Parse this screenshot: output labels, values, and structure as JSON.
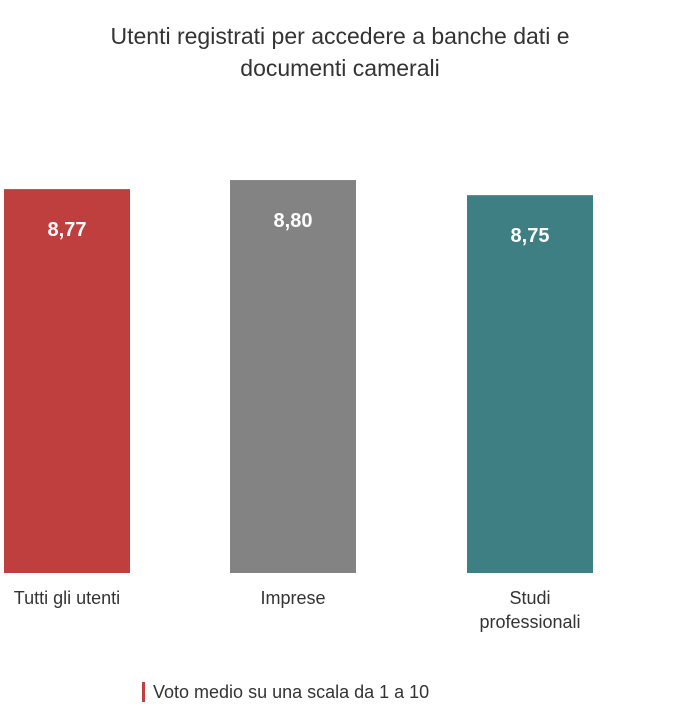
{
  "chart_data": {
    "type": "bar",
    "title": "Utenti registrati per accedere a banche dati e documenti camerali",
    "categories": [
      "Tutti gli utenti",
      "Imprese",
      "Studi professionali"
    ],
    "values": [
      8.77,
      8.8,
      8.75
    ],
    "value_labels": [
      "8,77",
      "8,80",
      "8,75"
    ],
    "colors": [
      "#bf3f3f",
      "#828382",
      "#3e7f84"
    ],
    "ylim": [
      7.5,
      8.82
    ],
    "note": "Voto medio su una scala da 1 a 10"
  }
}
